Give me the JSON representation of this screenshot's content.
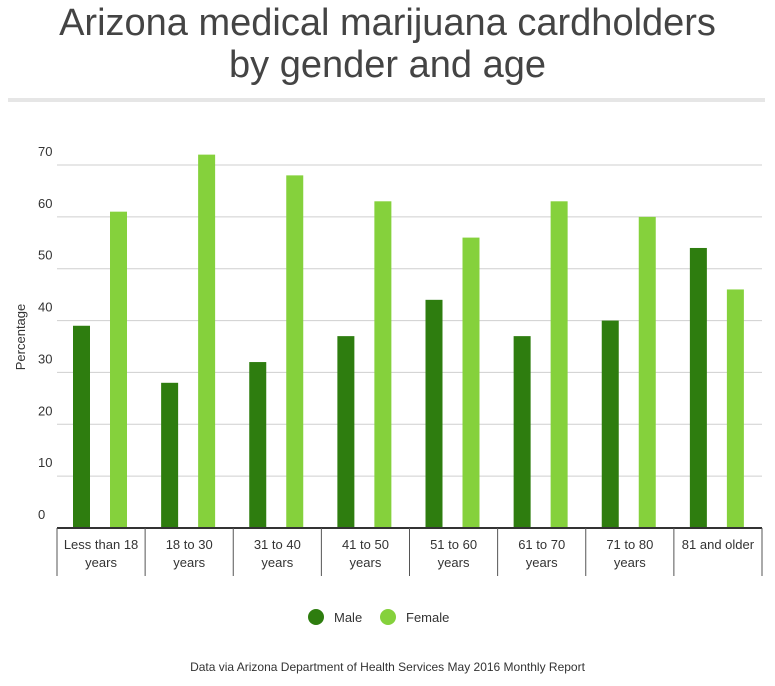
{
  "chart_data": {
    "type": "bar",
    "title": "Arizona medical marijuana cardholders\nby gender and age",
    "y_label": "Percentage",
    "source": "Data via Arizona Department of Health Services May 2016 Monthly Report",
    "categories": [
      "Less than 18\nyears",
      "18 to 30\nyears",
      "31 to 40\nyears",
      "41 to 50\nyears",
      "51 to 60\nyears",
      "61 to 70\nyears",
      "71 to 80\nyears",
      "81 and older"
    ],
    "series": [
      {
        "name": "Male",
        "color": "#2e7d0f",
        "values": [
          39,
          28,
          32,
          37,
          44,
          37,
          40,
          54
        ]
      },
      {
        "name": "Female",
        "color": "#85d13c",
        "values": [
          61,
          72,
          68,
          63,
          56,
          63,
          60,
          46
        ]
      }
    ],
    "ylim": [
      0,
      70
    ],
    "yticks": [
      0,
      10,
      20,
      30,
      40,
      50,
      60,
      70
    ],
    "grid": true,
    "legend": "bottom"
  }
}
